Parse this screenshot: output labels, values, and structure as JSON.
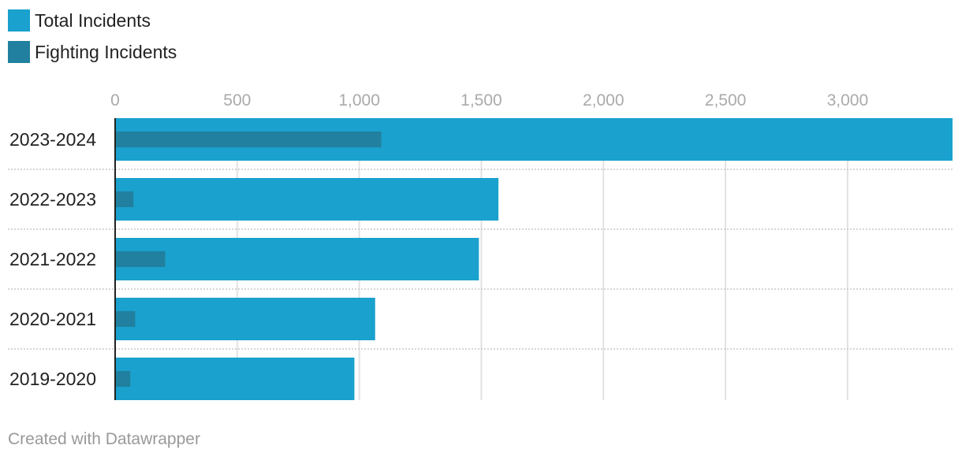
{
  "chart_data": {
    "type": "bar",
    "orientation": "horizontal",
    "categories": [
      "2023-2024",
      "2022-2023",
      "2021-2022",
      "2020-2021",
      "2019-2020"
    ],
    "series": [
      {
        "name": "Total Incidents",
        "color": "#1aa1cd",
        "values": [
          3430,
          1570,
          1490,
          1065,
          980
        ]
      },
      {
        "name": "Fighting Incidents",
        "color": "#21809f",
        "values": [
          1090,
          75,
          205,
          82,
          62
        ]
      }
    ],
    "xticks": [
      0,
      500,
      1000,
      1500,
      2000,
      2500,
      3000
    ],
    "xtick_labels": [
      "0",
      "500",
      "1,000",
      "1,500",
      "2,000",
      "2,500",
      "3,000"
    ],
    "xlim": [
      0,
      3430
    ],
    "grid": true,
    "legend_position": "top-left"
  },
  "footer": {
    "credit": "Created with Datawrapper"
  }
}
